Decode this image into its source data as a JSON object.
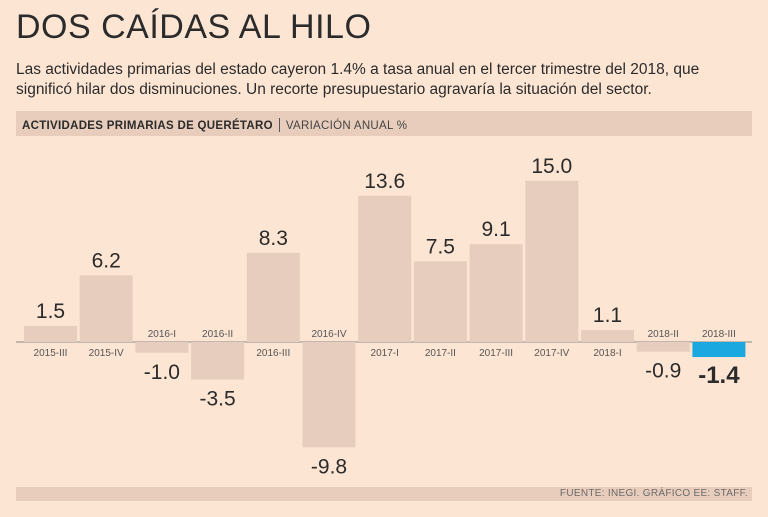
{
  "title": "DOS CAÍDAS AL HILO",
  "subtitle": "Las actividades primarias del estado cayeron 1.4% a tasa anual en el tercer trimestre del 2018, que significó hilar dos disminuciones. Un recorte presupuestario agravaría la situación del sector.",
  "header": {
    "label": "ACTIVIDADES PRIMARIAS DE QUERÉTARO",
    "unit": "VARIACIÓN ANUAL %"
  },
  "footer": {
    "source": "FUENTE: INEGI. GRÁFICO EE: STAFF."
  },
  "colors": {
    "bar": "#e6cdbd",
    "highlight": "#1ba7e0",
    "background": "#fde5d3",
    "axis": "#8a8a8a"
  },
  "chart_data": {
    "type": "bar",
    "title": "ACTIVIDADES PRIMARIAS DE QUERÉTARO",
    "ylabel": "VARIACIÓN ANUAL %",
    "xlabel": "",
    "categories": [
      "2015-III",
      "2015-IV",
      "2016-I",
      "2016-II",
      "2016-III",
      "2016-IV",
      "2017-I",
      "2017-II",
      "2017-III",
      "2017-IV",
      "2018-I",
      "2018-II",
      "2018-III"
    ],
    "values": [
      1.5,
      6.2,
      -1.0,
      -3.5,
      8.3,
      -9.8,
      13.6,
      7.5,
      9.1,
      15.0,
      1.1,
      -0.9,
      -1.4
    ],
    "value_labels": [
      "1.5",
      "6.2",
      "-1.0",
      "-3.5",
      "8.3",
      "-9.8",
      "13.6",
      "7.5",
      "9.1",
      "15.0",
      "1.1",
      "-0.9",
      "-1.4"
    ],
    "highlight_category": "2018-III",
    "ylim": [
      -9.8,
      15.0
    ],
    "grid": false
  }
}
